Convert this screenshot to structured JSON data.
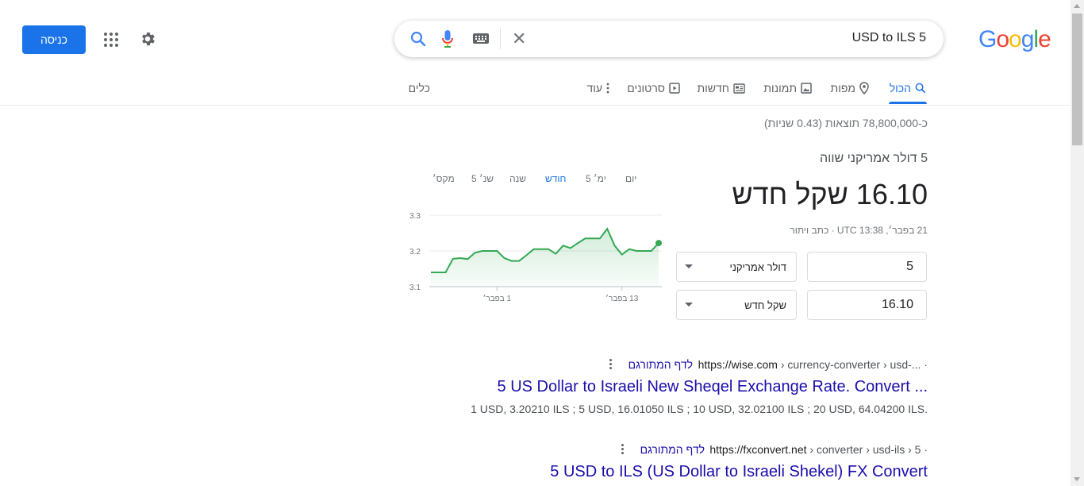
{
  "header": {
    "logo_letters": [
      {
        "ch": "G",
        "color": "#4285F4"
      },
      {
        "ch": "o",
        "color": "#EA4335"
      },
      {
        "ch": "o",
        "color": "#FBBC05"
      },
      {
        "ch": "g",
        "color": "#4285F4"
      },
      {
        "ch": "l",
        "color": "#34A853"
      },
      {
        "ch": "e",
        "color": "#EA4335"
      }
    ],
    "query": "USD to ILS 5",
    "signin_label": "כניסה",
    "icons": [
      "search-icon",
      "mic-icon",
      "keyboard-icon",
      "clear-icon",
      "apps-icon",
      "gear-icon"
    ]
  },
  "tabs": [
    {
      "label": "הכול",
      "icon": "search-icon",
      "active": true
    },
    {
      "label": "מפות",
      "icon": "map-pin-icon"
    },
    {
      "label": "תמונות",
      "icon": "image-icon"
    },
    {
      "label": "חדשות",
      "icon": "news-icon"
    },
    {
      "label": "סרטונים",
      "icon": "video-icon"
    },
    {
      "label": "עוד",
      "icon": "more-vert-icon"
    },
    {
      "label": "כלים"
    }
  ],
  "stats": "כ-78,800,000 תוצאות (0.43 שניות)",
  "converter": {
    "equals_text": "5 דולר אמריקני שווה",
    "result_text": "16.10 שקל חדש",
    "date_line": "21 בפבר׳, UTC 13:38 · כתב ויתור",
    "from_amount": "5",
    "from_currency": "דולר אמריקני",
    "to_amount": "16.10",
    "to_currency": "שקל חדש"
  },
  "chart_data": {
    "type": "line",
    "ranges": [
      "יום",
      "5 ימ׳",
      "חודש",
      "שנה",
      "5 שנ׳",
      "מקס׳"
    ],
    "active_range": "חודש",
    "yticks": [
      "3.3",
      "3.2",
      "3.1"
    ],
    "ylim": [
      3.1,
      3.3
    ],
    "xticks": [
      "1 בפבר׳",
      "13 בפבר׳"
    ],
    "values": [
      3.14,
      3.14,
      3.14,
      3.178,
      3.18,
      3.177,
      3.195,
      3.2,
      3.2,
      3.2,
      3.18,
      3.172,
      3.172,
      3.188,
      3.205,
      3.205,
      3.205,
      3.192,
      3.215,
      3.208,
      3.222,
      3.235,
      3.235,
      3.235,
      3.262,
      3.215,
      3.19,
      3.205,
      3.2,
      3.2,
      3.2,
      3.222
    ],
    "line_color": "#34A853",
    "grid": "horizontal"
  },
  "results": [
    {
      "cite": "https://wise.com",
      "path": " › currency-converter › usd-... ·",
      "translated": "לדף המתורגם",
      "title": "5 US Dollar to Israeli New Sheqel Exchange Rate. Convert ...",
      "snippet": "1 USD, 3.20210 ILS ; 5 USD, 16.01050 ILS ; 10 USD, 32.02100 ILS ; 20 USD, 64.04200 ILS."
    },
    {
      "cite": "https://fxconvert.net",
      "path": " › converter › usd-ils › 5 ·",
      "translated": "לדף המתורגם",
      "title": "5 USD to ILS (US Dollar to Israeli Shekel) FX Convert"
    }
  ]
}
